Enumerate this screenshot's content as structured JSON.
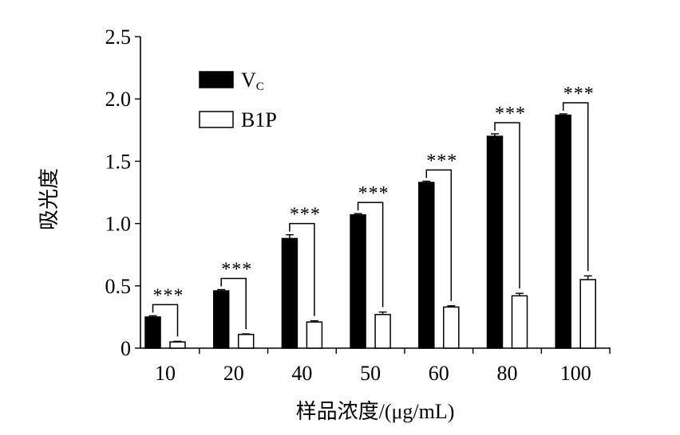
{
  "chart_data": {
    "type": "bar",
    "xlabel": "样品浓度/(μg/mL)",
    "ylabel": "吸光度",
    "categories": [
      "10",
      "20",
      "40",
      "50",
      "60",
      "80",
      "100"
    ],
    "ylim": [
      0,
      2.5
    ],
    "yticks": [
      0,
      0.5,
      1.0,
      1.5,
      2.0,
      2.5
    ],
    "ytick_labels": [
      "0",
      "0.5",
      "1.0",
      "1.5",
      "2.0",
      "2.5"
    ],
    "grid": false,
    "legend_position": "top-left",
    "series": [
      {
        "name": "Vc",
        "name_main": "V",
        "name_sub": "C",
        "fill": "#000000",
        "values": [
          0.25,
          0.46,
          0.88,
          1.07,
          1.33,
          1.7,
          1.87
        ],
        "errors": [
          0.01,
          0.01,
          0.03,
          0.01,
          0.01,
          0.02,
          0.01
        ]
      },
      {
        "name": "B1P",
        "fill": "#ffffff",
        "values": [
          0.05,
          0.11,
          0.21,
          0.27,
          0.33,
          0.42,
          0.55
        ],
        "errors": [
          0.005,
          0.005,
          0.01,
          0.02,
          0.01,
          0.02,
          0.03
        ]
      }
    ],
    "significance": [
      "***",
      "***",
      "***",
      "***",
      "***",
      "***",
      "***"
    ]
  }
}
